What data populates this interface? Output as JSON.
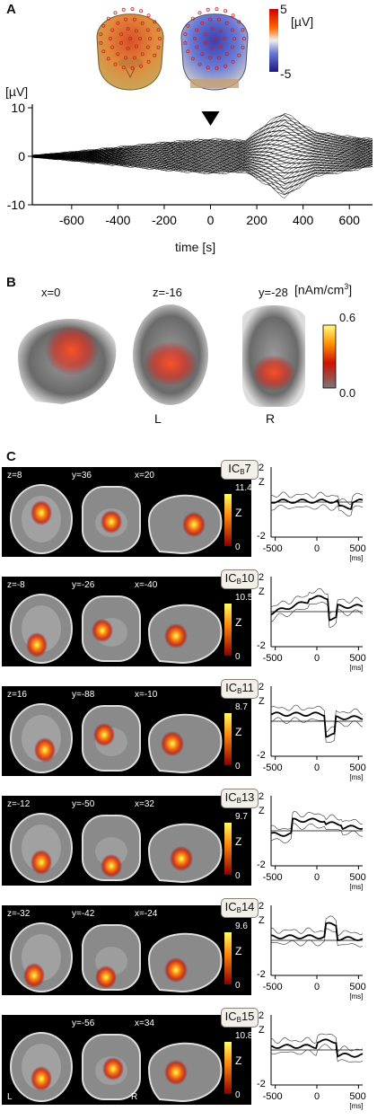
{
  "panel_a": {
    "letter": "A",
    "colorbar": {
      "max": "5",
      "unit": "[µV]",
      "min": "-5"
    },
    "chart_data": {
      "type": "line",
      "title": "",
      "xlabel": "time [s]",
      "ylabel": "[µV]",
      "xlim": [
        -770,
        700
      ],
      "ylim": [
        -10,
        10
      ],
      "xticks": [
        "-600",
        "-400",
        "-200",
        "0",
        "200",
        "400",
        "600"
      ],
      "yticks": [
        "10",
        "0",
        "-10"
      ],
      "annotation": "stimulus onset marker at t=0",
      "series": [
        {
          "x": [
            -770,
            -600,
            -400,
            -200,
            0,
            150,
            250,
            320,
            450,
            600,
            700
          ],
          "y": [
            0,
            0.8,
            1.8,
            2.8,
            3.5,
            3.2,
            7,
            9,
            5,
            4,
            3.5
          ]
        },
        {
          "x": [
            -770,
            -600,
            -400,
            -200,
            0,
            150,
            250,
            320,
            450,
            600,
            700
          ],
          "y": [
            0,
            -0.8,
            -1.8,
            -2.8,
            -3.5,
            -3.2,
            -6,
            -8.5,
            -4,
            -3,
            -2
          ]
        }
      ]
    }
  },
  "panel_b": {
    "letter": "B",
    "slice_labels": [
      "x=0",
      "z=-16",
      "y=-28"
    ],
    "colorbar": {
      "unit": "[nAm/cm",
      "unit_sup": "3",
      "unit_close": "]",
      "max": "0.6",
      "min": "0.0"
    },
    "orientation": {
      "left": "L",
      "right": "R"
    }
  },
  "panel_c": {
    "letter": "C",
    "erp_axis": {
      "ytop": "2",
      "ylabel": "Z",
      "ybottom": "-2",
      "xticks": [
        "-500",
        "0",
        "500"
      ],
      "xunit": "[ms]"
    },
    "orientation": {
      "left": "L",
      "right": "R"
    },
    "components": [
      {
        "ic_main": "IC",
        "ic_sub": "B",
        "ic_num": "7",
        "labels": [
          "z=8",
          "y=36",
          "x=20"
        ],
        "zmax": "11.4",
        "zmin": "0",
        "zunit": "Z"
      },
      {
        "ic_main": "IC",
        "ic_sub": "B",
        "ic_num": "10",
        "labels": [
          "z=-8",
          "y=-26",
          "x=-40"
        ],
        "zmax": "10.5",
        "zmin": "0",
        "zunit": "Z"
      },
      {
        "ic_main": "IC",
        "ic_sub": "B",
        "ic_num": "11",
        "labels": [
          "z=16",
          "y=-88",
          "x=-10"
        ],
        "zmax": "8.7",
        "zmin": "0",
        "zunit": "Z"
      },
      {
        "ic_main": "IC",
        "ic_sub": "B",
        "ic_num": "13",
        "labels": [
          "z=-12",
          "y=-50",
          "x=32"
        ],
        "zmax": "9.7",
        "zmin": "0",
        "zunit": "Z"
      },
      {
        "ic_main": "IC",
        "ic_sub": "B",
        "ic_num": "14",
        "labels": [
          "z=-32",
          "y=-42",
          "x=-24"
        ],
        "zmax": "9.6",
        "zmin": "0",
        "zunit": "Z"
      },
      {
        "ic_main": "IC",
        "ic_sub": "B",
        "ic_num": "15",
        "labels": [
          "",
          "y=-56",
          "x=34"
        ],
        "zmax": "10.8",
        "zmin": "0",
        "zunit": "Z"
      }
    ]
  }
}
